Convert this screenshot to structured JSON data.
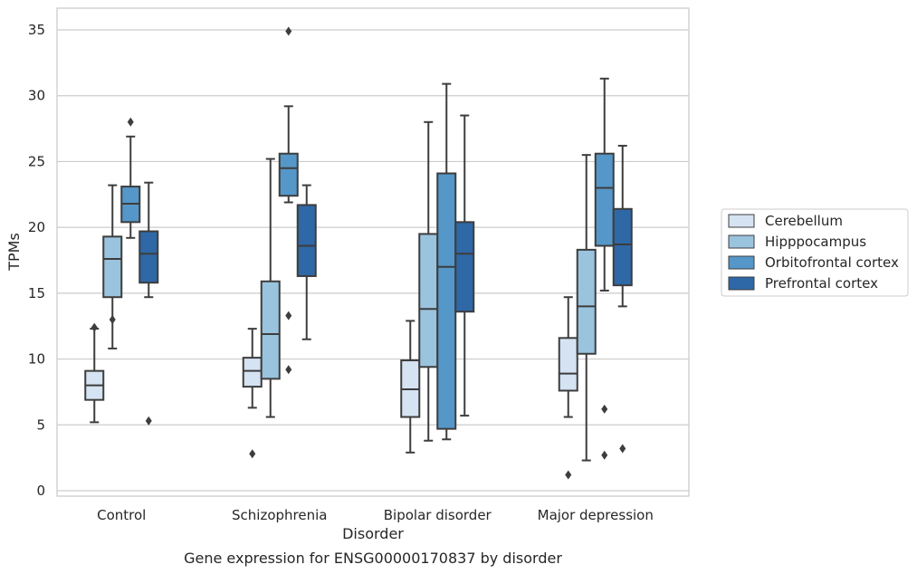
{
  "chart_data": {
    "type": "box",
    "xlabel": "Disorder",
    "ylabel": "TPMs",
    "caption": "Gene expression for ENSG00000170837 by disorder",
    "ylim": [
      -0.5,
      36.5
    ],
    "yticks": [
      0,
      5,
      10,
      15,
      20,
      25,
      30,
      35
    ],
    "grid": "horizontal",
    "legend_position": "right",
    "categories": [
      "Control",
      "Schizophrenia",
      "Bipolar disorder",
      "Major depression"
    ],
    "series": [
      {
        "name": "Cerebellum",
        "color": "#d5e3f2",
        "boxes": [
          {
            "whislo": 5.2,
            "q1": 6.9,
            "med": 8.0,
            "q3": 9.1,
            "whishi": 12.3,
            "fliers": [
              12.4
            ]
          },
          {
            "whislo": 6.3,
            "q1": 7.9,
            "med": 9.1,
            "q3": 10.1,
            "whishi": 12.3,
            "fliers": [
              2.8
            ]
          },
          {
            "whislo": 2.9,
            "q1": 5.6,
            "med": 7.7,
            "q3": 9.9,
            "whishi": 12.9,
            "fliers": []
          },
          {
            "whislo": 5.6,
            "q1": 7.6,
            "med": 8.9,
            "q3": 11.6,
            "whishi": 14.7,
            "fliers": [
              1.2
            ]
          }
        ]
      },
      {
        "name": "Hipppocampus",
        "color": "#9ac3de",
        "boxes": [
          {
            "whislo": 10.8,
            "q1": 14.7,
            "med": 17.6,
            "q3": 19.3,
            "whishi": 23.2,
            "fliers": [
              13.0
            ]
          },
          {
            "whislo": 5.6,
            "q1": 8.5,
            "med": 11.9,
            "q3": 15.9,
            "whishi": 25.2,
            "fliers": []
          },
          {
            "whislo": 3.8,
            "q1": 9.4,
            "med": 13.8,
            "q3": 19.5,
            "whishi": 28.0,
            "fliers": []
          },
          {
            "whislo": 2.3,
            "q1": 10.4,
            "med": 14.0,
            "q3": 18.3,
            "whishi": 25.5,
            "fliers": []
          }
        ]
      },
      {
        "name": "Orbitofrontal cortex",
        "color": "#5597c8",
        "boxes": [
          {
            "whislo": 19.2,
            "q1": 20.4,
            "med": 21.8,
            "q3": 23.1,
            "whishi": 26.9,
            "fliers": [
              28.0
            ]
          },
          {
            "whislo": 21.9,
            "q1": 22.4,
            "med": 24.5,
            "q3": 25.6,
            "whishi": 29.2,
            "fliers": [
              34.9,
              13.3,
              9.2
            ]
          },
          {
            "whislo": 3.9,
            "q1": 4.7,
            "med": 17.0,
            "q3": 24.1,
            "whishi": 30.9,
            "fliers": []
          },
          {
            "whislo": 15.2,
            "q1": 18.6,
            "med": 23.0,
            "q3": 25.6,
            "whishi": 31.3,
            "fliers": [
              6.2,
              2.7
            ]
          }
        ]
      },
      {
        "name": "Prefrontal cortex",
        "color": "#2e68a7",
        "boxes": [
          {
            "whislo": 14.7,
            "q1": 15.8,
            "med": 18.0,
            "q3": 19.7,
            "whishi": 23.4,
            "fliers": [
              5.3
            ]
          },
          {
            "whislo": 11.5,
            "q1": 16.3,
            "med": 18.6,
            "q3": 21.7,
            "whishi": 23.2,
            "fliers": []
          },
          {
            "whislo": 5.7,
            "q1": 13.6,
            "med": 18.0,
            "q3": 20.4,
            "whishi": 28.5,
            "fliers": []
          },
          {
            "whislo": 14.0,
            "q1": 15.6,
            "med": 18.7,
            "q3": 21.4,
            "whishi": 26.2,
            "fliers": [
              3.2
            ]
          }
        ]
      }
    ]
  }
}
